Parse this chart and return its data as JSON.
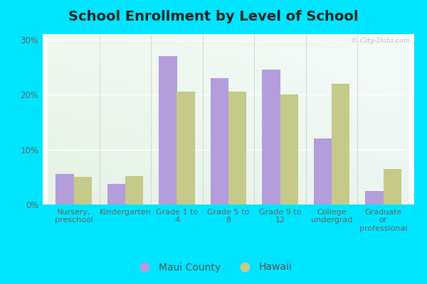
{
  "title": "School Enrollment by Level of School",
  "categories": [
    "Nursery,\npreschool",
    "Kindergarten",
    "Grade 1 to\n4",
    "Grade 5 to\n8",
    "Grade 9 to\n12",
    "College\nundergrad",
    "Graduate\nor\nprofessional"
  ],
  "maui_values": [
    5.5,
    3.8,
    27.0,
    23.0,
    24.5,
    12.0,
    2.5
  ],
  "hawaii_values": [
    5.0,
    5.2,
    20.5,
    20.5,
    20.0,
    22.0,
    6.5
  ],
  "maui_color": "#b39ddb",
  "hawaii_color": "#c5c98a",
  "background_outer": "#00e5ff",
  "background_inner_top": "#e8f5ee",
  "background_inner_bottom": "#d0ede0",
  "ylim": [
    0,
    31
  ],
  "yticks": [
    0,
    10,
    20,
    30
  ],
  "yticklabels": [
    "0%",
    "10%",
    "20%",
    "30%"
  ],
  "title_fontsize": 14,
  "legend_labels": [
    "Maui County",
    "Hawaii"
  ],
  "bar_width": 0.35,
  "watermark": "© City-Data.com"
}
